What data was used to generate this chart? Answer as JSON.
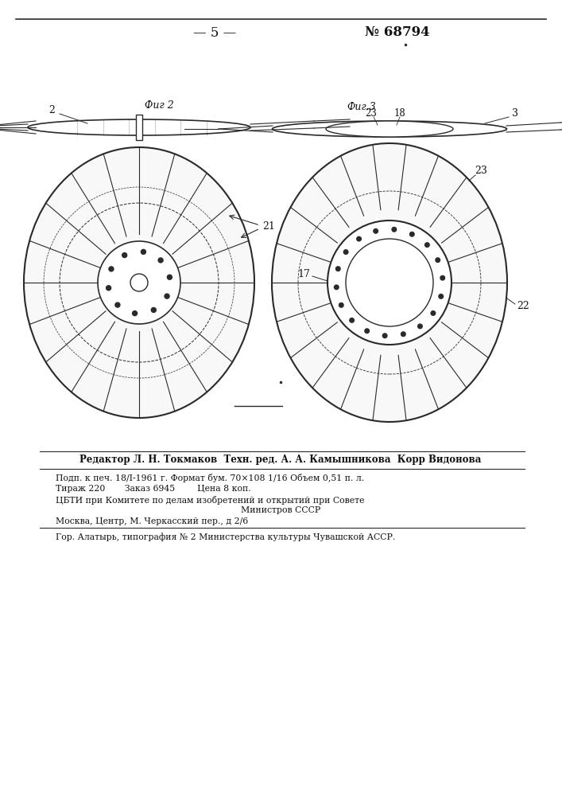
{
  "page_number": "— 5 —",
  "patent_number": "№ 68794",
  "fig2_label": "Фиг 2",
  "fig3_label": "Фиг.3",
  "label_2": "2",
  "label_3": "3",
  "label_17": "17",
  "label_18": "18",
  "label_21": "21",
  "label_22": "22",
  "label_23": "23",
  "footer_editor": "Редактор Л. Н. Токмаков  Техн. ред. А. А. Камышникова  Корр Видонова",
  "footer_line1": "Подп. к печ. 18/I-1961 г. Формат бум. 70×108 1/16 Объем 0,51 п. л.",
  "footer_line2": "Тираж 220       Заказ 6945        Цена 8 коп.",
  "footer_line3": "ЦБТИ при Комитете по делам изобретений и открытий при Совете",
  "footer_line4": "Министров СССР",
  "footer_line5": "Москва, Центр, М. Черкасский пер., д 2/6",
  "footer_line6": "Гор. Алатырь, типография № 2 Министерства культуры Чувашской АССР.",
  "bg_color": "#ffffff",
  "line_color": "#2a2a2a",
  "text_color": "#111111"
}
